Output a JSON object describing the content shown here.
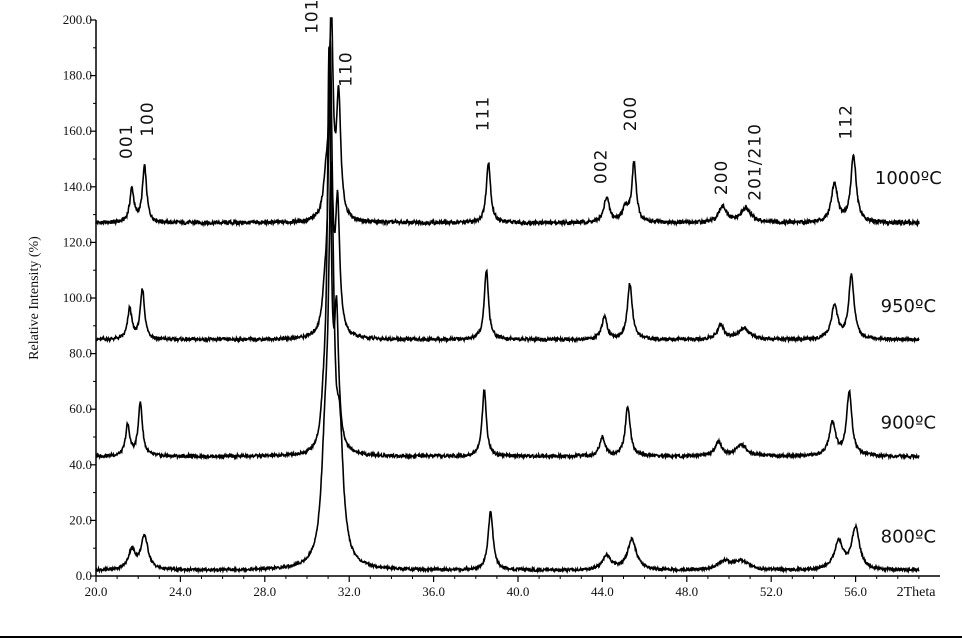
{
  "chart_data": {
    "type": "line",
    "title": "",
    "xlabel": "2Theta",
    "ylabel": "Relative Intensity (%)",
    "xlim": [
      20.0,
      60.0
    ],
    "ylim": [
      0.0,
      200.0
    ],
    "x_ticks": [
      {
        "value": 20.0,
        "label": "20.0"
      },
      {
        "value": 24.0,
        "label": "24.0"
      },
      {
        "value": 28.0,
        "label": "28.0"
      },
      {
        "value": 32.0,
        "label": "32.0"
      },
      {
        "value": 36.0,
        "label": "36.0"
      },
      {
        "value": 40.0,
        "label": "40.0"
      },
      {
        "value": 44.0,
        "label": "44.0"
      },
      {
        "value": 48.0,
        "label": "48.0"
      },
      {
        "value": 52.0,
        "label": "52.0"
      },
      {
        "value": 56.0,
        "label": "56.0"
      }
    ],
    "y_ticks": [
      {
        "value": 0.0,
        "label": "0.0"
      },
      {
        "value": 20.0,
        "label": "20.0"
      },
      {
        "value": 40.0,
        "label": "40.0"
      },
      {
        "value": 60.0,
        "label": "60.0"
      },
      {
        "value": 80.0,
        "label": "80.0"
      },
      {
        "value": 100.0,
        "label": "100.0"
      },
      {
        "value": 120.0,
        "label": "120.0"
      },
      {
        "value": 140.0,
        "label": "140.0"
      },
      {
        "value": 160.0,
        "label": "160.0"
      },
      {
        "value": 180.0,
        "label": "180.0"
      },
      {
        "value": 200.0,
        "label": "200.0"
      }
    ],
    "grid": false,
    "legend": "none",
    "series": [
      {
        "name": "1000ºC",
        "label_anchor": {
          "x": 58.5,
          "y": 141
        },
        "baseline": 127,
        "noise": 0.7,
        "peaks": [
          {
            "x": 21.7,
            "h": 12,
            "w": 0.12
          },
          {
            "x": 22.3,
            "h": 20,
            "w": 0.12
          },
          {
            "x": 30.9,
            "h": 12,
            "w": 0.15
          },
          {
            "x": 31.15,
            "h": 73,
            "w": 0.1
          },
          {
            "x": 31.5,
            "h": 43,
            "w": 0.12
          },
          {
            "x": 38.6,
            "h": 22,
            "w": 0.12
          },
          {
            "x": 44.2,
            "h": 9,
            "w": 0.15
          },
          {
            "x": 45.1,
            "h": 5,
            "w": 0.2
          },
          {
            "x": 45.5,
            "h": 21,
            "w": 0.12
          },
          {
            "x": 49.7,
            "h": 6,
            "w": 0.2
          },
          {
            "x": 50.8,
            "h": 5,
            "w": 0.3
          },
          {
            "x": 55.0,
            "h": 14,
            "w": 0.18
          },
          {
            "x": 55.9,
            "h": 24,
            "w": 0.15
          }
        ]
      },
      {
        "name": "950ºC",
        "label_anchor": {
          "x": 58.5,
          "y": 95
        },
        "baseline": 85,
        "noise": 0.6,
        "peaks": [
          {
            "x": 21.6,
            "h": 11,
            "w": 0.12
          },
          {
            "x": 22.2,
            "h": 18,
            "w": 0.12
          },
          {
            "x": 30.85,
            "h": 12,
            "w": 0.15
          },
          {
            "x": 31.1,
            "h": 100,
            "w": 0.1
          },
          {
            "x": 31.45,
            "h": 45,
            "w": 0.12
          },
          {
            "x": 38.5,
            "h": 25,
            "w": 0.12
          },
          {
            "x": 44.1,
            "h": 8,
            "w": 0.15
          },
          {
            "x": 45.3,
            "h": 20,
            "w": 0.14
          },
          {
            "x": 49.6,
            "h": 5,
            "w": 0.2
          },
          {
            "x": 50.7,
            "h": 4,
            "w": 0.3
          },
          {
            "x": 55.0,
            "h": 12,
            "w": 0.18
          },
          {
            "x": 55.8,
            "h": 23,
            "w": 0.15
          }
        ]
      },
      {
        "name": "900ºC",
        "label_anchor": {
          "x": 58.5,
          "y": 53
        },
        "baseline": 43,
        "noise": 0.6,
        "peaks": [
          {
            "x": 21.5,
            "h": 11,
            "w": 0.12
          },
          {
            "x": 22.1,
            "h": 19,
            "w": 0.12
          },
          {
            "x": 30.8,
            "h": 14,
            "w": 0.15
          },
          {
            "x": 31.05,
            "h": 140,
            "w": 0.1
          },
          {
            "x": 31.4,
            "h": 46,
            "w": 0.12
          },
          {
            "x": 38.4,
            "h": 24,
            "w": 0.12
          },
          {
            "x": 44.0,
            "h": 7,
            "w": 0.15
          },
          {
            "x": 45.2,
            "h": 18,
            "w": 0.14
          },
          {
            "x": 49.5,
            "h": 5,
            "w": 0.2
          },
          {
            "x": 50.6,
            "h": 4,
            "w": 0.3
          },
          {
            "x": 54.9,
            "h": 12,
            "w": 0.18
          },
          {
            "x": 55.7,
            "h": 23,
            "w": 0.15
          }
        ]
      },
      {
        "name": "800ºC",
        "label_anchor": {
          "x": 58.5,
          "y": 12
        },
        "baseline": 2,
        "noise": 0.5,
        "peaks": [
          {
            "x": 21.7,
            "h": 7,
            "w": 0.2
          },
          {
            "x": 22.3,
            "h": 12,
            "w": 0.2
          },
          {
            "x": 30.85,
            "h": 30,
            "w": 0.2
          },
          {
            "x": 31.15,
            "h": 130,
            "w": 0.16
          },
          {
            "x": 31.55,
            "h": 40,
            "w": 0.2
          },
          {
            "x": 38.7,
            "h": 21,
            "w": 0.14
          },
          {
            "x": 44.2,
            "h": 5,
            "w": 0.25
          },
          {
            "x": 45.4,
            "h": 11,
            "w": 0.25
          },
          {
            "x": 49.8,
            "h": 3,
            "w": 0.4
          },
          {
            "x": 50.6,
            "h": 3,
            "w": 0.4
          },
          {
            "x": 55.2,
            "h": 10,
            "w": 0.25
          },
          {
            "x": 56.0,
            "h": 15,
            "w": 0.22
          }
        ]
      }
    ],
    "annotations": [
      {
        "text": "001",
        "x": 21.7,
        "y": 150
      },
      {
        "text": "100",
        "x": 22.7,
        "y": 158
      },
      {
        "text": "101",
        "x": 30.5,
        "y": 195
      },
      {
        "text": "110",
        "x": 32.1,
        "y": 176
      },
      {
        "text": "111",
        "x": 38.6,
        "y": 160
      },
      {
        "text": "002",
        "x": 44.2,
        "y": 141
      },
      {
        "text": "200",
        "x": 45.6,
        "y": 160
      },
      {
        "text": "200",
        "x": 49.9,
        "y": 137
      },
      {
        "text": "201/210",
        "x": 51.5,
        "y": 135
      },
      {
        "text": "112",
        "x": 55.8,
        "y": 157
      }
    ]
  }
}
